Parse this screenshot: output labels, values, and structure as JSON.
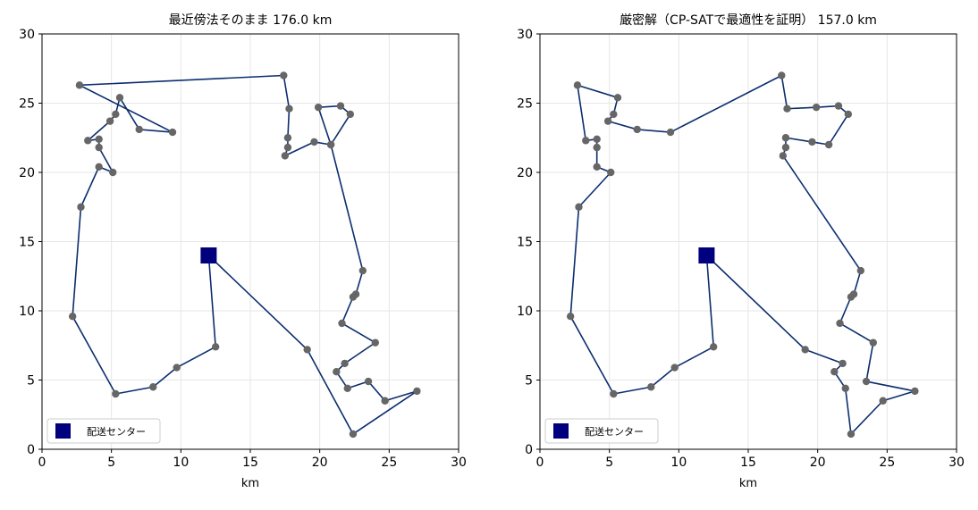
{
  "chart_data": [
    {
      "type": "line",
      "title": "最近傍法そのまま 176.0 km",
      "xlabel": "km",
      "ylabel": "",
      "xlim": [
        0,
        30
      ],
      "ylim": [
        0,
        30
      ],
      "x_ticks": [
        0,
        5,
        10,
        15,
        20,
        25,
        30
      ],
      "y_ticks": [
        0,
        5,
        10,
        15,
        20,
        25,
        30
      ],
      "grid": true,
      "legend": {
        "placement": "bottom-left",
        "entries": [
          "配送センター"
        ]
      },
      "depot": {
        "name": "配送センター",
        "x": 12.0,
        "y": 14.0
      },
      "route": [
        [
          12.0,
          14.0
        ],
        [
          12.5,
          7.4
        ],
        [
          9.7,
          5.9
        ],
        [
          8.0,
          4.5
        ],
        [
          5.3,
          4.0
        ],
        [
          2.2,
          9.6
        ],
        [
          2.8,
          17.5
        ],
        [
          4.1,
          20.4
        ],
        [
          5.1,
          20.0
        ],
        [
          4.1,
          21.8
        ],
        [
          4.1,
          22.4
        ],
        [
          3.3,
          22.3
        ],
        [
          4.9,
          23.7
        ],
        [
          5.3,
          24.2
        ],
        [
          5.6,
          25.4
        ],
        [
          7.0,
          23.1
        ],
        [
          9.4,
          22.9
        ],
        [
          2.7,
          26.3
        ],
        [
          17.4,
          27.0
        ],
        [
          17.8,
          24.6
        ],
        [
          17.7,
          22.5
        ],
        [
          17.7,
          21.8
        ],
        [
          17.5,
          21.2
        ],
        [
          19.6,
          22.2
        ],
        [
          20.8,
          22.0
        ],
        [
          22.2,
          24.2
        ],
        [
          21.5,
          24.8
        ],
        [
          19.9,
          24.7
        ],
        [
          20.8,
          22.0
        ],
        [
          23.1,
          12.9
        ],
        [
          22.6,
          11.2
        ],
        [
          22.4,
          11.0
        ],
        [
          21.6,
          9.1
        ],
        [
          24.0,
          7.7
        ],
        [
          21.8,
          6.2
        ],
        [
          21.2,
          5.6
        ],
        [
          22.0,
          4.4
        ],
        [
          23.5,
          4.9
        ],
        [
          24.7,
          3.5
        ],
        [
          27.0,
          4.2
        ],
        [
          22.4,
          1.1
        ],
        [
          19.1,
          7.2
        ],
        [
          12.0,
          14.0
        ]
      ]
    },
    {
      "type": "line",
      "title": "厳密解（CP-SATで最適性を証明） 157.0 km",
      "xlabel": "km",
      "ylabel": "",
      "xlim": [
        0,
        30
      ],
      "ylim": [
        0,
        30
      ],
      "x_ticks": [
        0,
        5,
        10,
        15,
        20,
        25,
        30
      ],
      "y_ticks": [
        0,
        5,
        10,
        15,
        20,
        25,
        30
      ],
      "grid": true,
      "legend": {
        "placement": "bottom-left",
        "entries": [
          "配送センター"
        ]
      },
      "depot": {
        "name": "配送センター",
        "x": 12.0,
        "y": 14.0
      },
      "route": [
        [
          12.0,
          14.0
        ],
        [
          12.5,
          7.4
        ],
        [
          9.7,
          5.9
        ],
        [
          8.0,
          4.5
        ],
        [
          5.3,
          4.0
        ],
        [
          2.2,
          9.6
        ],
        [
          2.8,
          17.5
        ],
        [
          5.1,
          20.0
        ],
        [
          4.1,
          20.4
        ],
        [
          4.1,
          21.8
        ],
        [
          4.1,
          22.4
        ],
        [
          3.3,
          22.3
        ],
        [
          2.7,
          26.3
        ],
        [
          5.6,
          25.4
        ],
        [
          5.3,
          24.2
        ],
        [
          4.9,
          23.7
        ],
        [
          7.0,
          23.1
        ],
        [
          9.4,
          22.9
        ],
        [
          17.4,
          27.0
        ],
        [
          17.8,
          24.6
        ],
        [
          19.9,
          24.7
        ],
        [
          21.5,
          24.8
        ],
        [
          22.2,
          24.2
        ],
        [
          20.8,
          22.0
        ],
        [
          19.6,
          22.2
        ],
        [
          17.7,
          22.5
        ],
        [
          17.7,
          21.8
        ],
        [
          17.5,
          21.2
        ],
        [
          23.1,
          12.9
        ],
        [
          22.6,
          11.2
        ],
        [
          22.4,
          11.0
        ],
        [
          21.6,
          9.1
        ],
        [
          24.0,
          7.7
        ],
        [
          23.5,
          4.9
        ],
        [
          27.0,
          4.2
        ],
        [
          24.7,
          3.5
        ],
        [
          22.4,
          1.1
        ],
        [
          22.0,
          4.4
        ],
        [
          21.2,
          5.6
        ],
        [
          21.8,
          6.2
        ],
        [
          19.1,
          7.2
        ],
        [
          12.0,
          14.0
        ]
      ]
    }
  ],
  "colors": {
    "route": "#0b2e6e",
    "stop": "#666666",
    "depot": "#00007f",
    "grid": "#e6e6e6",
    "axes": "#000000"
  }
}
